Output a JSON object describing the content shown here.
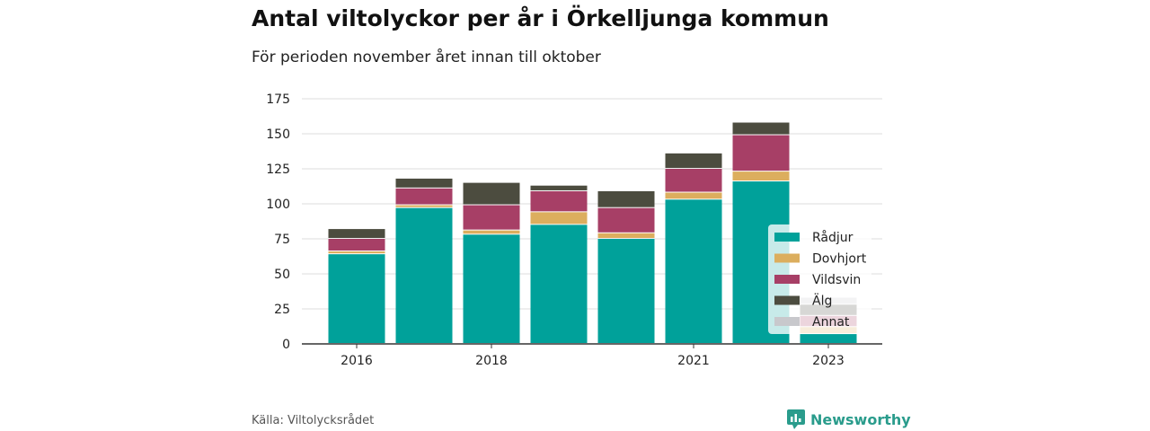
{
  "header": {
    "title": "Antal viltolyckor per år i Örkelljunga kommun",
    "subtitle": "För perioden november året innan till oktober"
  },
  "footer": {
    "source": "Källa: Viltolycksrådet",
    "brand": "Newsworthy",
    "brand_icon": "newsworthy-logo-icon",
    "brand_color": "#2a9c8c"
  },
  "chart_data": {
    "type": "bar",
    "stacked": true,
    "categories": [
      "2016",
      "2017",
      "2018",
      "2019",
      "2020",
      "2021",
      "2022",
      "2023"
    ],
    "x_tick_labels": [
      "2016",
      "",
      "2018",
      "",
      "",
      "2021",
      "",
      "2023"
    ],
    "series": [
      {
        "name": "Rådjur",
        "color": "#00a19a",
        "values": [
          64,
          97,
          78,
          85,
          75,
          103,
          116,
          7
        ]
      },
      {
        "name": "Dovhjort",
        "color": "#dcae5e",
        "values": [
          2,
          2,
          3,
          9,
          4,
          5,
          7,
          5
        ]
      },
      {
        "name": "Vildsvin",
        "color": "#a73f66",
        "values": [
          9,
          12,
          18,
          15,
          18,
          17,
          26,
          8
        ]
      },
      {
        "name": "Älg",
        "color": "#4c4c3f",
        "values": [
          7,
          7,
          16,
          4,
          12,
          11,
          9,
          8
        ]
      },
      {
        "name": "Annat",
        "color": "#c8c8cc",
        "values": [
          0,
          0,
          0,
          0,
          0,
          0,
          0,
          5
        ]
      }
    ],
    "title": "Antal viltolyckor per år i Örkelljunga kommun",
    "subtitle": "För perioden november året innan till oktober",
    "xlabel": "",
    "ylabel": "",
    "ylim": [
      0,
      175
    ],
    "yticks": [
      0,
      25,
      50,
      75,
      100,
      125,
      150,
      175
    ],
    "grid": true,
    "legend_position": "right"
  }
}
